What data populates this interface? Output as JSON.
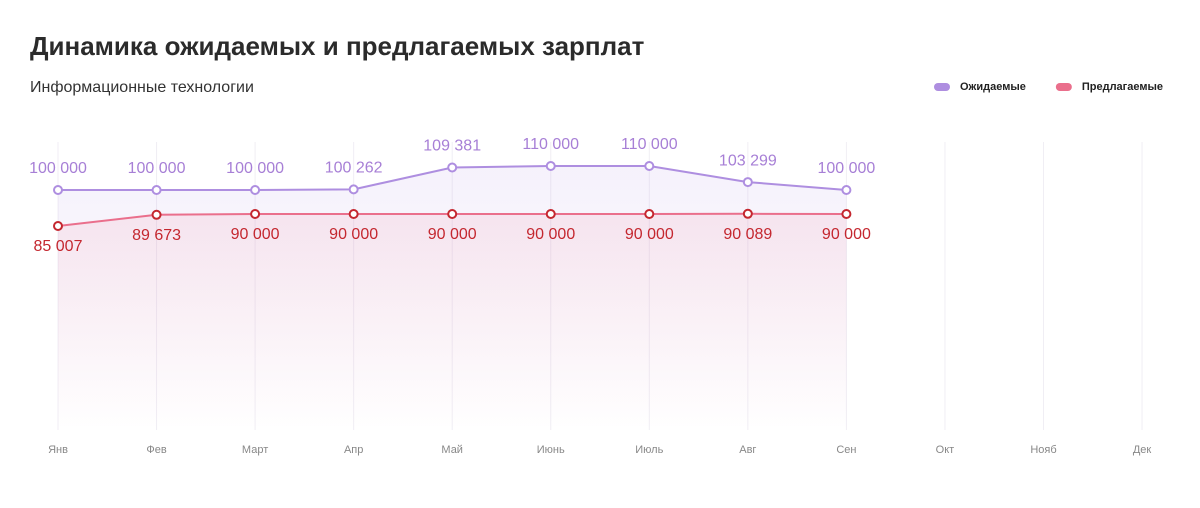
{
  "chart_data": {
    "type": "line",
    "title": "Динамика ожидаемых и предлагаемых зарплат",
    "subtitle": "Информационные технологии",
    "categories": [
      "Янв",
      "Фев",
      "Март",
      "Апр",
      "Май",
      "Июнь",
      "Июль",
      "Авг",
      "Сен",
      "Окт",
      "Нояб",
      "Дек"
    ],
    "series": [
      {
        "name": "Ожидаемые",
        "color": "#ae8ee0",
        "label_color": "#a77fd6",
        "values": [
          100000,
          100000,
          100000,
          100262,
          109381,
          110000,
          110000,
          103299,
          100000,
          null,
          null,
          null
        ],
        "value_labels": [
          "100 000",
          "100 000",
          "100 000",
          "100 262",
          "109 381",
          "110 000",
          "110 000",
          "103 299",
          "100 000",
          null,
          null,
          null
        ]
      },
      {
        "name": "Предлагаемые",
        "color": "#ea6f8c",
        "label_color": "#c4272f",
        "values": [
          85007,
          89673,
          90000,
          90000,
          90000,
          90000,
          90000,
          90089,
          90000,
          null,
          null,
          null
        ],
        "value_labels": [
          "85 007",
          "89 673",
          "90 000",
          "90 000",
          "90 000",
          "90 000",
          "90 000",
          "90 089",
          "90 000",
          null,
          null,
          null
        ]
      }
    ],
    "ylim": [
      0,
      120000
    ],
    "legend": "top-right"
  }
}
